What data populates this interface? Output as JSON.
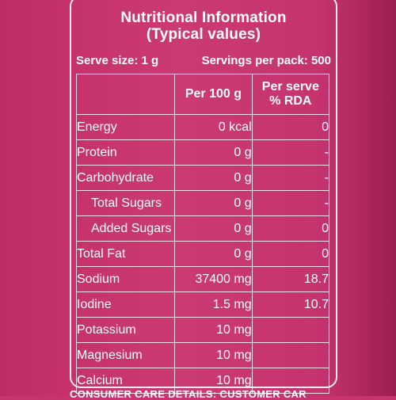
{
  "title_line1": "Nutritional Information",
  "title_line2": "(Typical values)",
  "serve_size": "Serve size: 1 g",
  "servings_per_pack": "Servings per pack: 500",
  "headers": {
    "nutrient": "",
    "per100": "Per 100 g",
    "rda_line1": "Per serve",
    "rda_line2": "% RDA"
  },
  "rows": [
    {
      "name": "Energy",
      "per100": "0 kcal",
      "rda": "0"
    },
    {
      "name": "Protein",
      "per100": "0 g",
      "rda": "-"
    },
    {
      "name": "Carbohydrate",
      "per100": "0 g",
      "rda": "-"
    },
    {
      "name": "Total Sugars",
      "per100": "0 g",
      "rda": "-"
    },
    {
      "name": "Added Sugars",
      "per100": "0 g",
      "rda": "0"
    },
    {
      "name": "Total Fat",
      "per100": "0 g",
      "rda": "0"
    },
    {
      "name": "Sodium",
      "per100": "37400 mg",
      "rda": "18.7"
    },
    {
      "name": "Iodine",
      "per100": "1.5 mg",
      "rda": "10.7"
    },
    {
      "name": "Potassium",
      "per100": "10 mg",
      "rda": ""
    },
    {
      "name": "Magnesium",
      "per100": "10 mg",
      "rda": ""
    },
    {
      "name": "Calcium",
      "per100": "10 mg",
      "rda": ""
    }
  ],
  "footer": "CONSUMER CARE DETAILS: CUSTOMER CAR"
}
